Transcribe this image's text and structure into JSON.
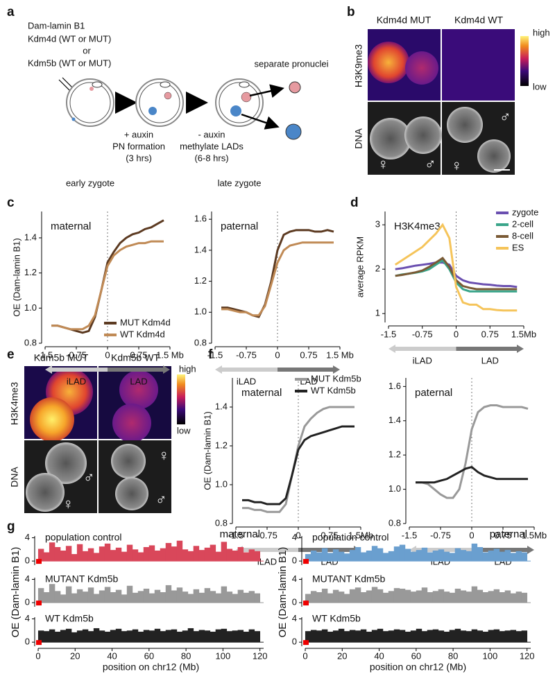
{
  "panel_labels": [
    "a",
    "b",
    "c",
    "d",
    "e",
    "f",
    "g"
  ],
  "diagram": {
    "lines": [
      "Dam-lamin B1",
      "Kdm4d (WT or MUT)",
      "or",
      "Kdm5b (WT or MUT)"
    ],
    "step1": [
      "+ auxin",
      "PN formation",
      "(3 hrs)"
    ],
    "step2": [
      "- auxin",
      "methylate LADs",
      "(6-8 hrs)"
    ],
    "separate": "separate pronuclei",
    "early": "early zygote",
    "late": "late zygote"
  },
  "panel_b": {
    "columns": [
      "Kdm4d MUT",
      "Kdm4d WT"
    ],
    "rows": [
      "H3K9me3",
      "DNA"
    ],
    "scale": [
      "high",
      "low"
    ],
    "symbols": [
      "♀",
      "♂",
      "♂",
      "♀"
    ]
  },
  "panel_e": {
    "columns": [
      "Kdm5b MUT",
      "Kdm5b WT"
    ],
    "rows": [
      "H3K4me3",
      "DNA"
    ],
    "scale": [
      "high",
      "low"
    ],
    "symbols": [
      "♂",
      "♀",
      "♀",
      "♂"
    ]
  },
  "chart_data": [
    {
      "type": "line",
      "title": "maternal",
      "ylabel": "OE (Dam-lamin B1)",
      "x": [
        -1.35,
        -1.2,
        -1.05,
        -0.9,
        -0.75,
        -0.6,
        -0.45,
        -0.3,
        -0.15,
        0,
        0.15,
        0.3,
        0.45,
        0.6,
        0.75,
        0.9,
        1.05,
        1.2,
        1.35
      ],
      "xlim": [
        -1.5,
        1.5
      ],
      "xticks": [
        -1.5,
        -0.75,
        0,
        0.75,
        {
          "value": 1.5,
          "label": "1.5 Mb"
        }
      ],
      "ylim": [
        0.8,
        1.55
      ],
      "yticks": [
        0.8,
        {
          "value": 1,
          "label": "1.0"
        },
        1.2,
        1.4
      ],
      "annotations": [
        "iLAD",
        "LAD"
      ],
      "legend": "lower right",
      "series": [
        {
          "name": "MUT Kdm4d",
          "color": "#5c3a21",
          "values": [
            0.9,
            0.9,
            0.89,
            0.88,
            0.87,
            0.86,
            0.87,
            0.95,
            1.1,
            1.26,
            1.32,
            1.37,
            1.4,
            1.42,
            1.43,
            1.45,
            1.46,
            1.48,
            1.5
          ]
        },
        {
          "name": "WT Kdm4d",
          "color": "#c08a55",
          "values": [
            0.9,
            0.9,
            0.89,
            0.88,
            0.88,
            0.88,
            0.9,
            0.96,
            1.1,
            1.24,
            1.3,
            1.33,
            1.35,
            1.36,
            1.37,
            1.37,
            1.38,
            1.38,
            1.38
          ]
        }
      ]
    },
    {
      "type": "line",
      "title": "paternal",
      "x": [
        -1.35,
        -1.2,
        -1.05,
        -0.9,
        -0.75,
        -0.6,
        -0.45,
        -0.3,
        -0.15,
        0,
        0.15,
        0.3,
        0.45,
        0.6,
        0.75,
        0.9,
        1.05,
        1.2,
        1.35
      ],
      "xlim": [
        -1.5,
        1.5
      ],
      "xticks": [
        -1.5,
        -0.75,
        0,
        0.75,
        {
          "value": 1.5,
          "label": "1.5 Mb"
        }
      ],
      "ylim": [
        0.8,
        1.65
      ],
      "yticks": [
        0.8,
        {
          "value": 1,
          "label": "1.0"
        },
        1.2,
        1.4,
        1.6
      ],
      "annotations": [
        "iLAD",
        "LAD"
      ],
      "series": [
        {
          "color": "#5c3a21",
          "values": [
            1.03,
            1.03,
            1.02,
            1.01,
            1.0,
            0.98,
            0.97,
            1.05,
            1.2,
            1.4,
            1.5,
            1.52,
            1.53,
            1.53,
            1.53,
            1.52,
            1.52,
            1.53,
            1.52
          ]
        },
        {
          "color": "#c08a55",
          "values": [
            1.02,
            1.02,
            1.01,
            1.0,
            1.0,
            0.98,
            0.98,
            1.04,
            1.18,
            1.32,
            1.4,
            1.43,
            1.44,
            1.45,
            1.45,
            1.45,
            1.45,
            1.45,
            1.45
          ]
        }
      ]
    },
    {
      "type": "line",
      "title": "H3K4me3",
      "ylabel": "average RPKM",
      "x": [
        -1.35,
        -1.2,
        -1.05,
        -0.9,
        -0.75,
        -0.6,
        -0.45,
        -0.3,
        -0.15,
        0,
        0.15,
        0.3,
        0.45,
        0.6,
        0.75,
        0.9,
        1.05,
        1.2,
        1.35
      ],
      "xlim": [
        -1.5,
        1.5
      ],
      "xticks": [
        -1.5,
        -0.75,
        0,
        0.75,
        {
          "value": 1.5,
          "label": "1.5Mb"
        }
      ],
      "ylim": [
        0.8,
        3.3
      ],
      "yticks": [
        1,
        2,
        3
      ],
      "annotations": [
        "iLAD",
        "LAD"
      ],
      "legend": "upper right",
      "series": [
        {
          "name": "zygote",
          "color": "#6a4fb0",
          "values": [
            2.0,
            2.02,
            2.05,
            2.08,
            2.1,
            2.12,
            2.15,
            2.15,
            2.1,
            1.85,
            1.75,
            1.7,
            1.68,
            1.66,
            1.65,
            1.63,
            1.62,
            1.62,
            1.6
          ]
        },
        {
          "name": "2-cell",
          "color": "#3aa58a",
          "values": [
            1.85,
            1.88,
            1.9,
            1.92,
            1.95,
            2.0,
            2.1,
            2.2,
            2.0,
            1.7,
            1.55,
            1.5,
            1.5,
            1.5,
            1.5,
            1.5,
            1.5,
            1.5,
            1.5
          ]
        },
        {
          "name": "8-cell",
          "color": "#7a5a35",
          "values": [
            1.85,
            1.87,
            1.9,
            1.93,
            1.97,
            2.05,
            2.15,
            2.25,
            2.05,
            1.75,
            1.62,
            1.58,
            1.55,
            1.55,
            1.55,
            1.55,
            1.55,
            1.55,
            1.55
          ]
        },
        {
          "name": "ES",
          "color": "#f5c45a",
          "values": [
            2.1,
            2.2,
            2.3,
            2.4,
            2.5,
            2.65,
            2.8,
            3.0,
            2.7,
            1.6,
            1.25,
            1.2,
            1.2,
            1.1,
            1.1,
            1.08,
            1.07,
            1.07,
            1.07
          ]
        }
      ]
    },
    {
      "type": "line",
      "title": "maternal",
      "ylabel": "OE (Dam-lamin B1)",
      "x": [
        -1.35,
        -1.2,
        -1.05,
        -0.9,
        -0.75,
        -0.6,
        -0.45,
        -0.3,
        -0.15,
        0,
        0.15,
        0.3,
        0.45,
        0.6,
        0.75,
        0.9,
        1.05,
        1.2,
        1.35
      ],
      "xlim": [
        -1.5,
        1.5
      ],
      "xticks": [
        -1.5,
        -0.75,
        0,
        0.75,
        {
          "value": 1.5,
          "label": "1.5Mb"
        }
      ],
      "ylim": [
        0.8,
        1.55
      ],
      "yticks": [
        0.8,
        {
          "value": 1,
          "label": "1.0"
        },
        1.2,
        1.4
      ],
      "annotations": [
        "iLAD",
        "LAD"
      ],
      "legend": "upper right",
      "series": [
        {
          "name": "MUT Kdm5b",
          "color": "#999999",
          "values": [
            0.88,
            0.88,
            0.87,
            0.87,
            0.86,
            0.86,
            0.86,
            0.9,
            1.05,
            1.2,
            1.3,
            1.34,
            1.37,
            1.39,
            1.4,
            1.4,
            1.4,
            1.4,
            1.4
          ]
        },
        {
          "name": "WT Kdm5b",
          "color": "#222222",
          "values": [
            0.92,
            0.92,
            0.91,
            0.91,
            0.9,
            0.9,
            0.9,
            0.93,
            1.05,
            1.18,
            1.23,
            1.25,
            1.26,
            1.27,
            1.28,
            1.29,
            1.3,
            1.3,
            1.3
          ]
        }
      ]
    },
    {
      "type": "line",
      "title": "paternal",
      "x": [
        -1.35,
        -1.2,
        -1.05,
        -0.9,
        -0.75,
        -0.6,
        -0.45,
        -0.3,
        -0.15,
        0,
        0.15,
        0.3,
        0.45,
        0.6,
        0.75,
        0.9,
        1.05,
        1.2,
        1.35
      ],
      "xlim": [
        -1.5,
        1.5
      ],
      "xticks": [
        -1.5,
        -0.75,
        0,
        0.75,
        {
          "value": 1.5,
          "label": "1.5Mb"
        }
      ],
      "ylim": [
        0.8,
        1.65
      ],
      "yticks": [
        0.8,
        {
          "value": 1,
          "label": "1.0"
        },
        1.2,
        1.4,
        1.6
      ],
      "annotations": [
        "iLAD",
        "LAD"
      ],
      "series": [
        {
          "color": "#999999",
          "values": [
            1.04,
            1.04,
            1.03,
            1.0,
            0.97,
            0.95,
            0.95,
            1.0,
            1.15,
            1.35,
            1.45,
            1.48,
            1.49,
            1.49,
            1.48,
            1.48,
            1.48,
            1.48,
            1.47
          ]
        },
        {
          "color": "#222222",
          "values": [
            1.04,
            1.04,
            1.04,
            1.04,
            1.05,
            1.06,
            1.08,
            1.1,
            1.12,
            1.13,
            1.1,
            1.08,
            1.07,
            1.06,
            1.06,
            1.06,
            1.06,
            1.06,
            1.06
          ]
        }
      ]
    },
    {
      "type": "bar",
      "title": "population control",
      "side_label": "maternal",
      "color": "#d9475a",
      "xlim": [
        0,
        122
      ],
      "ylim": [
        -0.7,
        4.3
      ],
      "yticks": [
        0,
        4
      ],
      "x": [
        1.5,
        4.5,
        7.5,
        10.5,
        13.5,
        16.5,
        19.5,
        22.5,
        25.5,
        28.5,
        31.5,
        34.5,
        37.5,
        40.5,
        43.5,
        46.5,
        49.5,
        52.5,
        55.5,
        58.5,
        61.5,
        64.5,
        67.5,
        70.5,
        73.5,
        76.5,
        79.5,
        82.5,
        85.5,
        88.5,
        91.5,
        94.5,
        97.5,
        100.5,
        103.5,
        106.5,
        109.5,
        112.5,
        115.5,
        118.5
      ],
      "values": [
        2.1,
        1.5,
        3.2,
        2.4,
        1.8,
        2.6,
        1.2,
        2.9,
        1.7,
        2.2,
        1.4,
        2.5,
        3.0,
        1.9,
        2.3,
        1.6,
        2.8,
        2.0,
        1.5,
        2.4,
        2.7,
        1.8,
        2.2,
        3.1,
        2.5,
        3.5,
        2.0,
        1.7,
        2.6,
        1.9,
        2.3,
        2.8,
        1.6,
        3.3,
        2.1,
        1.8,
        2.4,
        1.5,
        2.0,
        1.7
      ]
    },
    {
      "type": "bar",
      "title": "MUTANT Kdm5b",
      "ylabel": "OE (Dam-lamin B1)",
      "color": "#999999",
      "xlim": [
        0,
        122
      ],
      "ylim": [
        -0.7,
        4.3
      ],
      "yticks": [
        0,
        4
      ],
      "x": [
        1.5,
        4.5,
        7.5,
        10.5,
        13.5,
        16.5,
        19.5,
        22.5,
        25.5,
        28.5,
        31.5,
        34.5,
        37.5,
        40.5,
        43.5,
        46.5,
        49.5,
        52.5,
        55.5,
        58.5,
        61.5,
        64.5,
        67.5,
        70.5,
        73.5,
        76.5,
        79.5,
        82.5,
        85.5,
        88.5,
        91.5,
        94.5,
        97.5,
        100.5,
        103.5,
        106.5,
        109.5,
        112.5,
        115.5,
        118.5
      ],
      "values": [
        2.5,
        1.8,
        3.2,
        2.0,
        1.4,
        2.8,
        1.6,
        2.3,
        1.9,
        2.6,
        1.5,
        2.1,
        2.7,
        1.8,
        2.2,
        1.4,
        2.9,
        1.7,
        2.0,
        2.4,
        1.6,
        2.2,
        1.8,
        3.0,
        2.1,
        2.6,
        1.9,
        1.5,
        2.3,
        1.7,
        2.5,
        2.0,
        1.6,
        2.8,
        1.9,
        1.5,
        2.2,
        1.7,
        2.0,
        1.6
      ]
    },
    {
      "type": "bar",
      "title": "WT Kdm5b",
      "xlabel": "position on chr12 (Mb)",
      "color": "#222222",
      "xlim": [
        0,
        122
      ],
      "ylim": [
        -0.7,
        4.3
      ],
      "yticks": [
        0,
        4
      ],
      "xticks": [
        0,
        20,
        40,
        60,
        80,
        100,
        120
      ],
      "x": [
        1.5,
        4.5,
        7.5,
        10.5,
        13.5,
        16.5,
        19.5,
        22.5,
        25.5,
        28.5,
        31.5,
        34.5,
        37.5,
        40.5,
        43.5,
        46.5,
        49.5,
        52.5,
        55.5,
        58.5,
        61.5,
        64.5,
        67.5,
        70.5,
        73.5,
        76.5,
        79.5,
        82.5,
        85.5,
        88.5,
        91.5,
        94.5,
        97.5,
        100.5,
        103.5,
        106.5,
        109.5,
        112.5,
        115.5,
        118.5
      ],
      "values": [
        2.0,
        1.9,
        2.2,
        1.8,
        2.1,
        2.3,
        1.7,
        2.0,
        2.2,
        1.9,
        2.4,
        2.0,
        1.8,
        2.1,
        2.3,
        1.9,
        2.0,
        2.2,
        1.8,
        2.1,
        2.0,
        2.3,
        1.9,
        2.1,
        2.2,
        1.8,
        2.0,
        2.4,
        1.9,
        2.1,
        2.0,
        1.8,
        2.2,
        2.3,
        1.9,
        2.0,
        2.1,
        1.8,
        2.2,
        1.9
      ]
    },
    {
      "type": "bar",
      "title": "population control",
      "side_label": "paternal",
      "color": "#6a9fcf",
      "xlim": [
        0,
        122
      ],
      "ylim": [
        -0.7,
        4.3
      ],
      "yticks": [
        0,
        4
      ],
      "x": [
        1.5,
        4.5,
        7.5,
        10.5,
        13.5,
        16.5,
        19.5,
        22.5,
        25.5,
        28.5,
        31.5,
        34.5,
        37.5,
        40.5,
        43.5,
        46.5,
        49.5,
        52.5,
        55.5,
        58.5,
        61.5,
        64.5,
        67.5,
        70.5,
        73.5,
        76.5,
        79.5,
        82.5,
        85.5,
        88.5,
        91.5,
        94.5,
        97.5,
        100.5,
        103.5,
        106.5,
        109.5,
        112.5,
        115.5,
        118.5
      ],
      "values": [
        1.2,
        1.8,
        1.5,
        2.2,
        1.4,
        2.0,
        1.6,
        1.3,
        1.9,
        2.4,
        1.5,
        1.8,
        2.6,
        2.2,
        1.4,
        1.7,
        2.5,
        2.8,
        2.1,
        1.6,
        1.9,
        2.3,
        1.5,
        1.8,
        2.0,
        1.6,
        1.4,
        2.2,
        1.9,
        1.7,
        3.0,
        2.4,
        1.5,
        1.8,
        2.1,
        1.6,
        1.9,
        1.4,
        1.7,
        1.5
      ]
    },
    {
      "type": "bar",
      "title": "MUTANT Kdm5b",
      "ylabel": "OE (Dam-lamin B1)",
      "color": "#999999",
      "xlim": [
        0,
        122
      ],
      "ylim": [
        -0.7,
        4.3
      ],
      "yticks": [
        0,
        4
      ],
      "x": [
        1.5,
        4.5,
        7.5,
        10.5,
        13.5,
        16.5,
        19.5,
        22.5,
        25.5,
        28.5,
        31.5,
        34.5,
        37.5,
        40.5,
        43.5,
        46.5,
        49.5,
        52.5,
        55.5,
        58.5,
        61.5,
        64.5,
        67.5,
        70.5,
        73.5,
        76.5,
        79.5,
        82.5,
        85.5,
        88.5,
        91.5,
        94.5,
        97.5,
        100.5,
        103.5,
        106.5,
        109.5,
        112.5,
        115.5,
        118.5
      ],
      "values": [
        1.5,
        2.0,
        1.8,
        2.4,
        1.6,
        2.2,
        1.9,
        1.5,
        2.3,
        2.6,
        1.8,
        2.1,
        2.7,
        2.3,
        1.7,
        2.0,
        2.5,
        2.4,
        2.2,
        1.9,
        2.1,
        2.6,
        1.8,
        2.0,
        2.3,
        1.9,
        1.7,
        2.4,
        2.1,
        1.9,
        2.8,
        2.2,
        1.8,
        2.0,
        2.3,
        1.8,
        2.1,
        1.6,
        1.9,
        1.7
      ]
    },
    {
      "type": "bar",
      "title": "WT Kdm5b",
      "xlabel": "position on chr12 (Mb)",
      "color": "#222222",
      "xlim": [
        0,
        122
      ],
      "ylim": [
        -0.7,
        4.3
      ],
      "yticks": [
        0,
        4
      ],
      "xticks": [
        0,
        20,
        40,
        60,
        80,
        100,
        120
      ],
      "x": [
        1.5,
        4.5,
        7.5,
        10.5,
        13.5,
        16.5,
        19.5,
        22.5,
        25.5,
        28.5,
        31.5,
        34.5,
        37.5,
        40.5,
        43.5,
        46.5,
        49.5,
        52.5,
        55.5,
        58.5,
        61.5,
        64.5,
        67.5,
        70.5,
        73.5,
        76.5,
        79.5,
        82.5,
        85.5,
        88.5,
        91.5,
        94.5,
        97.5,
        100.5,
        103.5,
        106.5,
        109.5,
        112.5,
        115.5,
        118.5
      ],
      "values": [
        1.9,
        2.1,
        2.0,
        2.2,
        1.8,
        2.0,
        2.3,
        1.9,
        2.1,
        2.0,
        2.2,
        1.8,
        2.1,
        2.3,
        1.9,
        2.0,
        2.2,
        2.1,
        1.8,
        2.0,
        2.3,
        1.9,
        2.1,
        2.2,
        2.0,
        1.8,
        2.1,
        2.3,
        2.0,
        1.9,
        2.2,
        2.0,
        1.8,
        2.1,
        2.2,
        1.9,
        2.0,
        2.1,
        1.9,
        2.0
      ]
    }
  ]
}
